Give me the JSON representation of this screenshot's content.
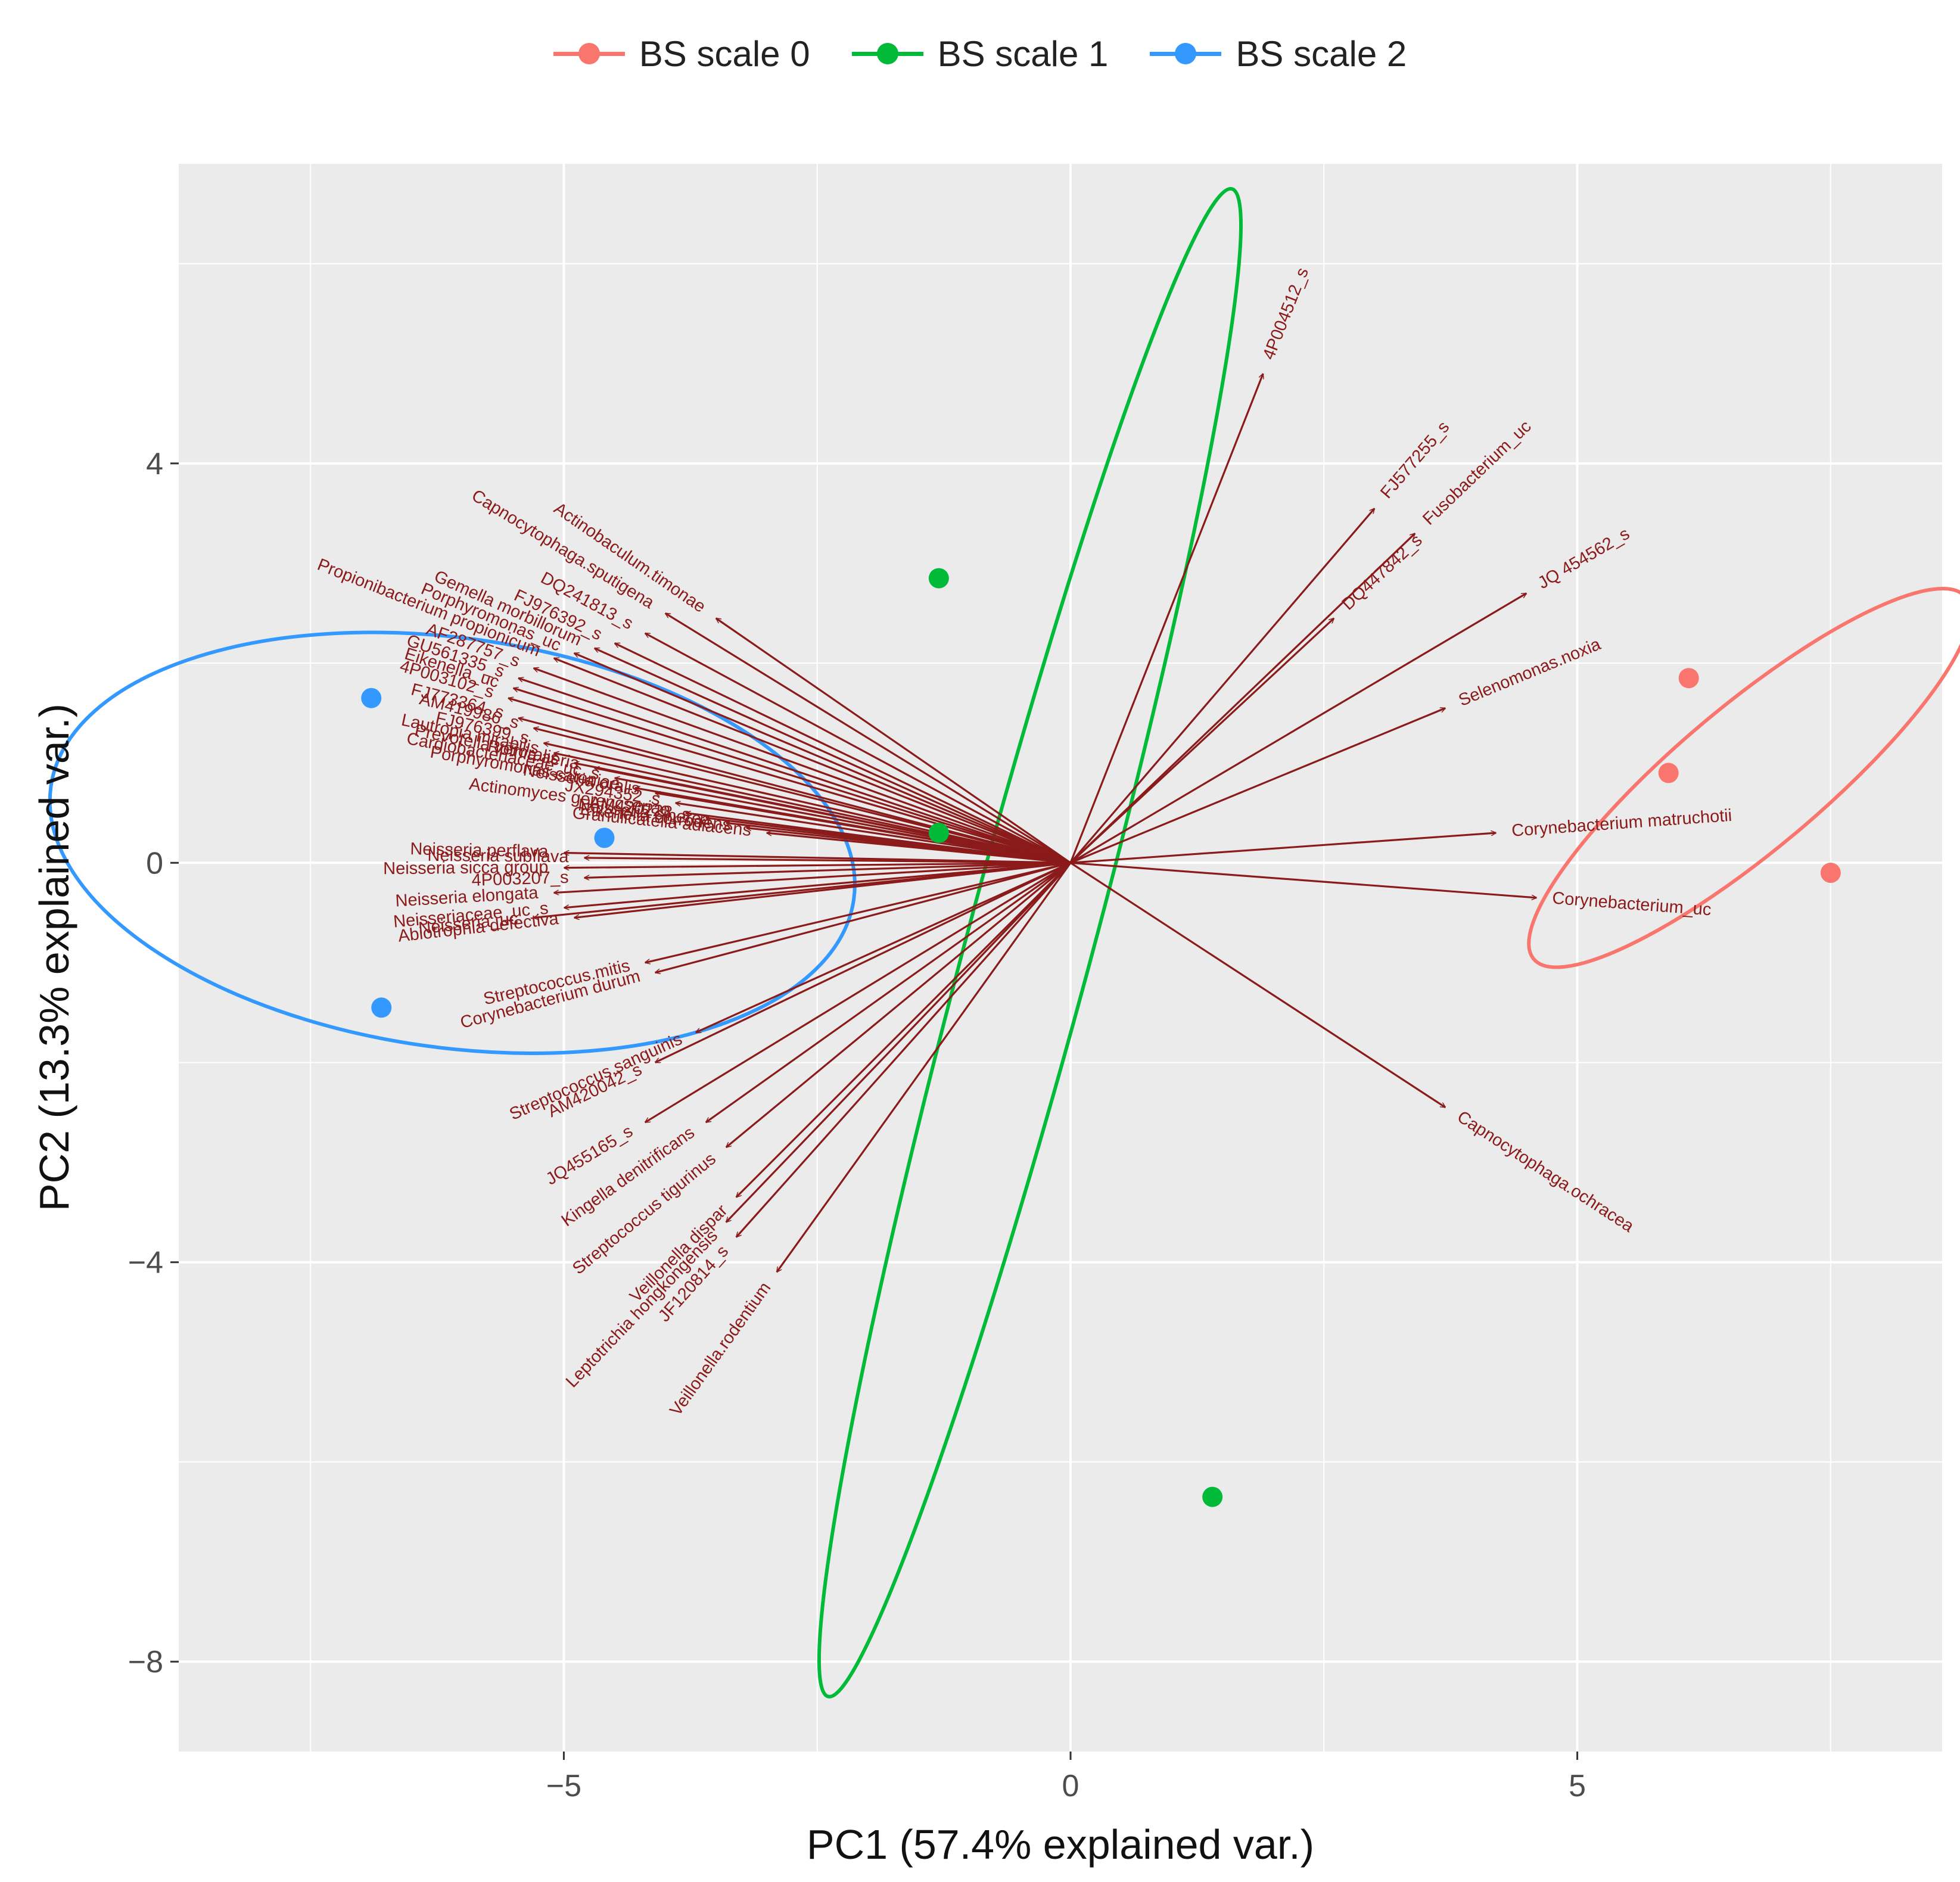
{
  "chart_data": {
    "type": "scatter",
    "xlabel": "PC1 (57.4% explained var.)",
    "ylabel": "PC2 (13.3% explained var.)",
    "xlim": [
      -8.8,
      8.6
    ],
    "ylim": [
      -8.9,
      7.0
    ],
    "x_ticks": [
      -5,
      0,
      5
    ],
    "x_tick_labels": [
      "−5",
      "0",
      "5"
    ],
    "y_ticks": [
      -8,
      -4,
      0,
      4
    ],
    "y_tick_labels": [
      "−8",
      "−4",
      "0",
      "4"
    ],
    "grid": true,
    "legend_position": "top",
    "arrow_color": "#8B1A1A",
    "series": [
      {
        "name": "BS scale 0",
        "color": "#F8766D",
        "points": [
          [
            6.1,
            1.85
          ],
          [
            5.9,
            0.9
          ],
          [
            7.5,
            -0.1
          ]
        ],
        "ellipse": {
          "cx": 6.7,
          "cy": 0.85,
          "rx": 2.78,
          "ry": 0.72,
          "angle_deg": -40
        }
      },
      {
        "name": "BS scale 1",
        "color": "#00BA38",
        "points": [
          [
            -1.3,
            2.85
          ],
          [
            -1.3,
            0.3
          ],
          [
            1.4,
            -6.35
          ]
        ],
        "ellipse": {
          "cx": -0.4,
          "cy": -0.8,
          "rx": 7.7,
          "ry": 0.63,
          "angle_deg": -75
        }
      },
      {
        "name": "BS scale  2",
        "color": "#3399FF",
        "points": [
          [
            -6.9,
            1.65
          ],
          [
            -4.6,
            0.25
          ],
          [
            -6.8,
            -1.45
          ]
        ],
        "ellipse": {
          "cx": -6.1,
          "cy": 0.2,
          "rx": 4.0,
          "ry": 2.05,
          "angle_deg": 8
        }
      }
    ],
    "loadings": [
      {
        "label": "4P004512_s",
        "x": 1.9,
        "y": 4.9
      },
      {
        "label": "FJ577255_s",
        "x": 3.0,
        "y": 3.55
      },
      {
        "label": "Fusobacterium_uc",
        "x": 3.4,
        "y": 3.3
      },
      {
        "label": "DQ447842_s",
        "x": 2.6,
        "y": 2.45
      },
      {
        "label": "JQ 454562_s",
        "x": 4.5,
        "y": 2.7
      },
      {
        "label": "Selenomonas.noxia",
        "x": 3.7,
        "y": 1.55
      },
      {
        "label": "Corynebacterium matruchotii",
        "x": 4.2,
        "y": 0.3
      },
      {
        "label": "Corynebacterium_uc",
        "x": 4.6,
        "y": -0.35
      },
      {
        "label": "Capnocytophaga.ochracea",
        "x": 3.7,
        "y": -2.45
      },
      {
        "label": "Actinobaculum.timonae",
        "x": -3.5,
        "y": 2.45
      },
      {
        "label": "Capnocytophaga.sputigena",
        "x": -4.0,
        "y": 2.5
      },
      {
        "label": "DQ241813_s",
        "x": -4.2,
        "y": 2.3
      },
      {
        "label": "FJ976392_s",
        "x": -4.5,
        "y": 2.2
      },
      {
        "label": "Gemella morbillorum",
        "x": -4.7,
        "y": 2.15
      },
      {
        "label": "Porphyromonas_uc",
        "x": -4.9,
        "y": 2.1
      },
      {
        "label": "Propionibacterium propionicum",
        "x": -5.1,
        "y": 2.05
      },
      {
        "label": "AF287757_s",
        "x": -5.3,
        "y": 1.95
      },
      {
        "label": "GU561335_s",
        "x": -5.45,
        "y": 1.85
      },
      {
        "label": "Eikenella_uc",
        "x": -5.5,
        "y": 1.75
      },
      {
        "label": "4P003102_s",
        "x": -5.55,
        "y": 1.65
      },
      {
        "label": "FJ773364_s",
        "x": -5.45,
        "y": 1.45
      },
      {
        "label": "AM419986_s",
        "x": -5.3,
        "y": 1.35
      },
      {
        "label": "FJ976399_s",
        "x": -5.2,
        "y": 1.2
      },
      {
        "label": "Lautropia mirabilis",
        "x": -5.1,
        "y": 1.1
      },
      {
        "label": "Prevotella veroralis",
        "x": -4.9,
        "y": 1.0
      },
      {
        "label": "Rothia aeria",
        "x": -4.7,
        "y": 0.95
      },
      {
        "label": "Cardiobacteriaceae_uc_s",
        "x": -4.5,
        "y": 0.85
      },
      {
        "label": "Porphyromonas catoniae",
        "x": -4.3,
        "y": 0.75
      },
      {
        "label": "Neisseria oralis",
        "x": -4.1,
        "y": 0.7
      },
      {
        "label": "JX294352_s",
        "x": -3.9,
        "y": 0.6
      },
      {
        "label": "Actinomyces gerencseriae",
        "x": -3.8,
        "y": 0.5
      },
      {
        "label": "AM420223_s",
        "x": -3.6,
        "y": 0.45
      },
      {
        "label": "Neisseria cinerea",
        "x": -3.4,
        "y": 0.4
      },
      {
        "label": "Eikenella corrodens",
        "x": -3.2,
        "y": 0.35
      },
      {
        "label": "Granulicatella adiacens",
        "x": -3.0,
        "y": 0.3
      },
      {
        "label": "Neisseria perflava",
        "x": -5.0,
        "y": 0.1
      },
      {
        "label": "Neisseria subflava",
        "x": -4.8,
        "y": 0.05
      },
      {
        "label": "Neisseria sicca group",
        "x": -5.0,
        "y": -0.05
      },
      {
        "label": "4P003207_s",
        "x": -4.8,
        "y": -0.15
      },
      {
        "label": "Neisseria elongata",
        "x": -5.1,
        "y": -0.3
      },
      {
        "label": "Neisseriaceae_uc_s",
        "x": -5.0,
        "y": -0.45
      },
      {
        "label": "Abiotrophia defectiva",
        "x": -4.9,
        "y": -0.55
      },
      {
        "label": "Neisseria_uc",
        "x": -5.3,
        "y": -0.55
      },
      {
        "label": "Streptococcus.mitis",
        "x": -4.2,
        "y": -1.0
      },
      {
        "label": "Corynebacterium durum",
        "x": -4.1,
        "y": -1.1
      },
      {
        "label": "Streptococcus.sanguinis",
        "x": -3.7,
        "y": -1.7
      },
      {
        "label": "AM420042_s",
        "x": -4.1,
        "y": -2.0
      },
      {
        "label": "JQ455165_s",
        "x": -4.2,
        "y": -2.6
      },
      {
        "label": "Kingella denitrificans",
        "x": -3.6,
        "y": -2.6
      },
      {
        "label": "Streptococcus tigurinus",
        "x": -3.4,
        "y": -2.85
      },
      {
        "label": "Veillonella dispar",
        "x": -3.3,
        "y": -3.35
      },
      {
        "label": "Leptotrichia hongkongensis",
        "x": -3.4,
        "y": -3.6
      },
      {
        "label": "JF120814_s",
        "x": -3.3,
        "y": -3.75
      },
      {
        "label": "Veillonella.rodentium",
        "x": -2.9,
        "y": -4.1
      }
    ]
  }
}
